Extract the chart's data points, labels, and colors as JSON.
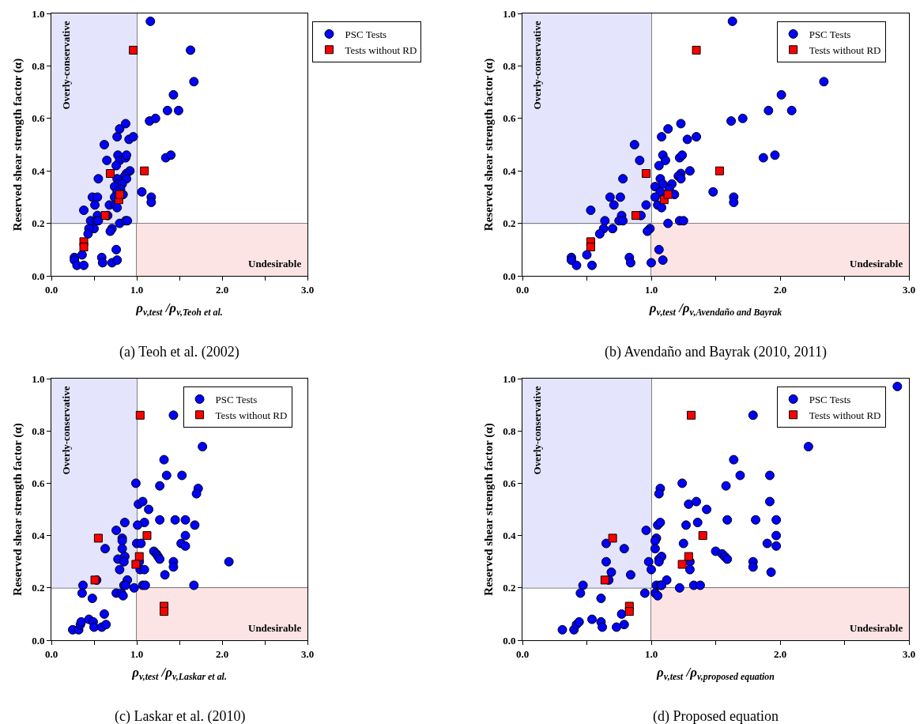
{
  "chart_data": [
    {
      "type": "scatter",
      "title": "(a) Teoh et al. (2002)",
      "xlabel": "ρ$_{v,test}$ /ρ$_{v,Teoh et al.}$",
      "ylabel": "Reserved shear strength factor (α)",
      "legend": "top right",
      "xlim": [
        0,
        3
      ],
      "ylim": [
        0,
        1
      ],
      "xticks": [
        {
          "value": 0,
          "label": "0.0"
        },
        {
          "value": 0.5,
          "label": null
        },
        {
          "value": 1,
          "label": "1.0"
        },
        {
          "value": 1.5,
          "label": null
        },
        {
          "value": 2,
          "label": "2.0"
        },
        {
          "value": 2.5,
          "label": null
        },
        {
          "value": 3,
          "label": "3.0"
        }
      ],
      "yticks": [
        {
          "value": 0,
          "label": "0.0"
        },
        {
          "value": 0.2,
          "label": "0.2"
        },
        {
          "value": 0.4,
          "label": "0.4"
        },
        {
          "value": 0.6,
          "label": "0.6"
        },
        {
          "value": 0.8,
          "label": "0.8"
        },
        {
          "value": 1,
          "label": "1.0"
        }
      ],
      "ref_lines": [
        {
          "axis": "x",
          "value": 1,
          "color": "#000000"
        },
        {
          "axis": "y",
          "value": 0.2,
          "color": "#000000"
        }
      ],
      "bands": [
        {
          "axis": "x",
          "from": 0,
          "to": 1,
          "label": "Overly-conservative",
          "color": "#e4e4fc"
        },
        {
          "axis": "y",
          "from": 0,
          "to": 0.2,
          "label": "Undesirable",
          "color": "#fde4e4"
        }
      ],
      "series": [
        {
          "name": "PSC Tests",
          "color": "#0000ff",
          "marker": "circle",
          "x": [
            1.16,
            1.63,
            1.67,
            1.43,
            1.36,
            1.49,
            1.15,
            1.22,
            0.87,
            0.8,
            0.77,
            0.91,
            0.96,
            0.62,
            0.78,
            0.8,
            0.87,
            0.88,
            0.65,
            0.76,
            0.92,
            0.88,
            0.86,
            0.88,
            0.55,
            0.77,
            0.78,
            0.83,
            0.74,
            0.81,
            0.77,
            0.74,
            0.84,
            0.48,
            0.54,
            0.51,
            0.68,
            0.75,
            0.77,
            0.38,
            0.54,
            0.66,
            0.46,
            0.53,
            0.55,
            0.8,
            0.87,
            0.89,
            0.5,
            0.44,
            0.71,
            0.69,
            0.43,
            0.76,
            0.36,
            0.27,
            0.27,
            0.3,
            0.38,
            0.59,
            0.6,
            0.71,
            0.77,
            1.06,
            1.17,
            1.17,
            1.34,
            1.4
          ],
          "values": [
            0.97,
            0.86,
            0.74,
            0.69,
            0.63,
            0.63,
            0.59,
            0.6,
            0.58,
            0.56,
            0.53,
            0.52,
            0.53,
            0.5,
            0.46,
            0.44,
            0.45,
            0.46,
            0.44,
            0.42,
            0.4,
            0.39,
            0.38,
            0.37,
            0.37,
            0.37,
            0.35,
            0.35,
            0.34,
            0.33,
            0.32,
            0.3,
            0.31,
            0.3,
            0.3,
            0.27,
            0.27,
            0.27,
            0.26,
            0.25,
            0.23,
            0.23,
            0.21,
            0.21,
            0.21,
            0.2,
            0.21,
            0.21,
            0.18,
            0.18,
            0.18,
            0.17,
            0.16,
            0.1,
            0.08,
            0.07,
            0.06,
            0.04,
            0.04,
            0.07,
            0.05,
            0.05,
            0.06,
            0.32,
            0.3,
            0.28,
            0.45,
            0.46
          ]
        },
        {
          "name": "Tests without RD",
          "color": "#ff0000",
          "marker": "square",
          "x": [
            0.96,
            1.09,
            0.69,
            0.79,
            0.8,
            0.63,
            0.38,
            0.38
          ],
          "values": [
            0.86,
            0.4,
            0.39,
            0.29,
            0.31,
            0.23,
            0.13,
            0.11
          ]
        }
      ]
    },
    {
      "type": "scatter",
      "title": "(b) Avendaño and Bayrak (2010, 2011)",
      "xlabel": "ρ$_{v,test}$ /ρ$_{v,Avendaño and Bayrak}$",
      "ylabel": "Reserved shear strength factor (α)",
      "legend": "top right",
      "xlim": [
        0,
        3
      ],
      "ylim": [
        0,
        1
      ],
      "xticks": [
        {
          "value": 0,
          "label": "0.0"
        },
        {
          "value": 0.5,
          "label": null
        },
        {
          "value": 1,
          "label": "1.0"
        },
        {
          "value": 1.5,
          "label": null
        },
        {
          "value": 2,
          "label": "2.0"
        },
        {
          "value": 2.5,
          "label": null
        },
        {
          "value": 3,
          "label": "3.0"
        }
      ],
      "yticks": [
        {
          "value": 0,
          "label": "0.0"
        },
        {
          "value": 0.2,
          "label": "0.2"
        },
        {
          "value": 0.4,
          "label": "0.4"
        },
        {
          "value": 0.6,
          "label": "0.6"
        },
        {
          "value": 0.8,
          "label": "0.8"
        },
        {
          "value": 1,
          "label": "1.0"
        }
      ],
      "ref_lines": [
        {
          "axis": "x",
          "value": 1,
          "color": "#000000"
        },
        {
          "axis": "y",
          "value": 0.2,
          "color": "#000000"
        }
      ],
      "bands": [
        {
          "axis": "x",
          "from": 0,
          "to": 1,
          "label": "Overly-conservative",
          "color": "#e4e4fc"
        },
        {
          "axis": "y",
          "from": 0,
          "to": 0.2,
          "label": "Undesirable",
          "color": "#fde4e4"
        }
      ],
      "series": [
        {
          "name": "PSC Tests",
          "color": "#0000ff",
          "marker": "circle",
          "x": [
            1.63,
            2.34,
            2.01,
            1.91,
            2.09,
            1.62,
            1.71,
            1.23,
            1.13,
            1.08,
            1.28,
            1.35,
            0.87,
            1.09,
            1.11,
            1.22,
            1.24,
            0.91,
            1.06,
            1.3,
            1.23,
            1.21,
            1.23,
            0.78,
            1.07,
            1.09,
            1.16,
            1.03,
            1.14,
            1.07,
            1.03,
            1.18,
            0.68,
            0.76,
            0.71,
            0.96,
            1.05,
            1.08,
            0.53,
            0.77,
            0.92,
            0.64,
            0.75,
            0.78,
            1.13,
            1.22,
            1.25,
            0.63,
            0.7,
            0.99,
            0.97,
            0.6,
            1.06,
            0.5,
            0.38,
            0.38,
            0.42,
            0.54,
            0.83,
            0.84,
            1.0,
            1.09,
            1.48,
            1.64,
            1.64,
            1.87,
            1.96
          ],
          "values": [
            0.97,
            0.74,
            0.69,
            0.63,
            0.63,
            0.59,
            0.6,
            0.58,
            0.56,
            0.53,
            0.52,
            0.53,
            0.5,
            0.46,
            0.44,
            0.45,
            0.46,
            0.44,
            0.42,
            0.4,
            0.39,
            0.38,
            0.37,
            0.37,
            0.37,
            0.35,
            0.35,
            0.34,
            0.33,
            0.32,
            0.3,
            0.31,
            0.3,
            0.3,
            0.27,
            0.27,
            0.27,
            0.26,
            0.25,
            0.23,
            0.23,
            0.21,
            0.21,
            0.21,
            0.2,
            0.21,
            0.21,
            0.18,
            0.18,
            0.18,
            0.17,
            0.16,
            0.1,
            0.08,
            0.07,
            0.06,
            0.04,
            0.04,
            0.07,
            0.05,
            0.05,
            0.06,
            0.32,
            0.3,
            0.28,
            0.45,
            0.46
          ]
        },
        {
          "name": "Tests without RD",
          "color": "#ff0000",
          "marker": "square",
          "x": [
            1.35,
            1.53,
            0.96,
            1.1,
            1.13,
            0.88,
            0.53,
            0.53
          ],
          "values": [
            0.86,
            0.4,
            0.39,
            0.29,
            0.31,
            0.23,
            0.13,
            0.11
          ]
        }
      ]
    },
    {
      "type": "scatter",
      "title": "(c) Laskar et al. (2010)",
      "xlabel": "ρ$_{v,test}$ /ρ$_{v,Laskar et al.}$",
      "ylabel": "Reserved shear strength factor (α)",
      "legend": "top right",
      "xlim": [
        0,
        3
      ],
      "ylim": [
        0,
        1
      ],
      "xticks": [
        {
          "value": 0,
          "label": "0.0"
        },
        {
          "value": 0.5,
          "label": null
        },
        {
          "value": 1,
          "label": "1.0"
        },
        {
          "value": 1.5,
          "label": null
        },
        {
          "value": 2,
          "label": "2.0"
        },
        {
          "value": 2.5,
          "label": null
        },
        {
          "value": 3,
          "label": "3.0"
        }
      ],
      "yticks": [
        {
          "value": 0,
          "label": "0.0"
        },
        {
          "value": 0.2,
          "label": "0.2"
        },
        {
          "value": 0.4,
          "label": "0.4"
        },
        {
          "value": 0.6,
          "label": "0.6"
        },
        {
          "value": 0.8,
          "label": "0.8"
        },
        {
          "value": 1,
          "label": "1.0"
        }
      ],
      "ref_lines": [
        {
          "axis": "x",
          "value": 1,
          "color": "#000000"
        },
        {
          "axis": "y",
          "value": 0.2,
          "color": "#000000"
        }
      ],
      "bands": [
        {
          "axis": "x",
          "from": 0,
          "to": 1,
          "label": "Overly-conservative",
          "color": "#e4e4fc"
        },
        {
          "axis": "y",
          "from": 0,
          "to": 0.2,
          "label": "Undesirable",
          "color": "#fde4e4"
        }
      ],
      "series": [
        {
          "name": "PSC Tests",
          "color": "#0000ff",
          "marker": "circle",
          "x": [
            1.43,
            1.77,
            1.32,
            1.35,
            1.53,
            1.27,
            1.72,
            1.7,
            0.99,
            1.02,
            1.07,
            1.14,
            0.86,
            1.09,
            1.27,
            1.45,
            1.57,
            1.68,
            1.01,
            0.76,
            0.83,
            0.83,
            1.57,
            1.0,
            1.05,
            1.52,
            1.57,
            0.63,
            0.83,
            1.2,
            1.23,
            1.25,
            1.27,
            0.78,
            0.86,
            0.85,
            1.43,
            1.43,
            1.03,
            1.04,
            1.09,
            0.8,
            1.33,
            0.53,
            0.89,
            0.37,
            0.85,
            0.87,
            1.07,
            1.1,
            1.67,
            0.97,
            0.36,
            0.48,
            0.76,
            0.82,
            0.84,
            0.62,
            0.25,
            0.32,
            0.34,
            0.35,
            0.44,
            0.49,
            0.5,
            0.59,
            0.64,
            2.08
          ],
          "values": [
            0.86,
            0.74,
            0.69,
            0.63,
            0.63,
            0.59,
            0.58,
            0.56,
            0.6,
            0.52,
            0.53,
            0.5,
            0.45,
            0.45,
            0.46,
            0.46,
            0.46,
            0.44,
            0.44,
            0.42,
            0.39,
            0.38,
            0.4,
            0.37,
            0.37,
            0.37,
            0.36,
            0.35,
            0.35,
            0.34,
            0.33,
            0.32,
            0.31,
            0.31,
            0.32,
            0.3,
            0.3,
            0.28,
            0.3,
            0.27,
            0.27,
            0.27,
            0.25,
            0.23,
            0.23,
            0.21,
            0.21,
            0.21,
            0.21,
            0.21,
            0.21,
            0.2,
            0.18,
            0.16,
            0.18,
            0.18,
            0.17,
            0.1,
            0.04,
            0.04,
            0.06,
            0.07,
            0.08,
            0.07,
            0.05,
            0.05,
            0.06,
            0.3
          ]
        },
        {
          "name": "Tests without RD",
          "color": "#ff0000",
          "marker": "square",
          "x": [
            1.04,
            1.12,
            0.55,
            1.03,
            0.99,
            0.51,
            1.32,
            1.32
          ],
          "values": [
            0.86,
            0.4,
            0.39,
            0.32,
            0.29,
            0.23,
            0.13,
            0.11
          ]
        }
      ]
    },
    {
      "type": "scatter",
      "title": "(d) Proposed equation",
      "xlabel": "ρ$_{v,test}$ /ρ$_{v,proposed equation}$",
      "ylabel": "Reserved shear strength factor (α)",
      "legend": "top right",
      "xlim": [
        0,
        3
      ],
      "ylim": [
        0,
        1
      ],
      "xticks": [
        {
          "value": 0,
          "label": "0.0"
        },
        {
          "value": 0.5,
          "label": null
        },
        {
          "value": 1,
          "label": "1.0"
        },
        {
          "value": 1.5,
          "label": null
        },
        {
          "value": 2,
          "label": "2.0"
        },
        {
          "value": 2.5,
          "label": null
        },
        {
          "value": 3,
          "label": "3.0"
        }
      ],
      "yticks": [
        {
          "value": 0,
          "label": "0.0"
        },
        {
          "value": 0.2,
          "label": "0.2"
        },
        {
          "value": 0.4,
          "label": "0.4"
        },
        {
          "value": 0.6,
          "label": "0.6"
        },
        {
          "value": 0.8,
          "label": "0.8"
        },
        {
          "value": 1,
          "label": "1.0"
        }
      ],
      "ref_lines": [
        {
          "axis": "x",
          "value": 1,
          "color": "#000000"
        },
        {
          "axis": "y",
          "value": 0.2,
          "color": "#000000"
        }
      ],
      "bands": [
        {
          "axis": "x",
          "from": 0,
          "to": 1,
          "label": "Overly-conservative",
          "color": "#e4e4fc"
        },
        {
          "axis": "y",
          "from": 0,
          "to": 0.2,
          "label": "Undesirable",
          "color": "#fde4e4"
        }
      ],
      "series": [
        {
          "name": "PSC Tests",
          "color": "#0000ff",
          "marker": "circle",
          "x": [
            2.91,
            1.79,
            2.22,
            1.64,
            1.69,
            1.92,
            1.58,
            1.92,
            1.24,
            1.07,
            1.06,
            1.29,
            1.35,
            1.43,
            1.59,
            1.81,
            1.97,
            1.05,
            1.07,
            1.27,
            1.36,
            0.96,
            1.97,
            1.04,
            1.03,
            1.25,
            1.9,
            1.97,
            0.65,
            0.79,
            1.03,
            1.5,
            1.55,
            1.57,
            1.59,
            1.06,
            1.08,
            1.06,
            0.98,
            0.65,
            1.3,
            1.79,
            1.79,
            0.69,
            1.3,
            1.0,
            0.84,
            1.93,
            0.67,
            1.12,
            0.47,
            1.04,
            1.07,
            1.08,
            1.33,
            1.38,
            1.22,
            0.45,
            0.61,
            0.95,
            1.03,
            1.05,
            0.77,
            0.31,
            0.4,
            0.42,
            0.44,
            0.54,
            0.61,
            0.62,
            0.73,
            0.79
          ],
          "values": [
            0.97,
            0.86,
            0.74,
            0.69,
            0.63,
            0.63,
            0.59,
            0.53,
            0.6,
            0.58,
            0.56,
            0.52,
            0.53,
            0.5,
            0.46,
            0.46,
            0.46,
            0.44,
            0.45,
            0.44,
            0.45,
            0.42,
            0.4,
            0.39,
            0.38,
            0.37,
            0.37,
            0.36,
            0.37,
            0.35,
            0.35,
            0.34,
            0.33,
            0.32,
            0.31,
            0.31,
            0.32,
            0.3,
            0.3,
            0.3,
            0.3,
            0.3,
            0.28,
            0.26,
            0.27,
            0.27,
            0.25,
            0.26,
            0.23,
            0.23,
            0.21,
            0.21,
            0.21,
            0.21,
            0.21,
            0.21,
            0.2,
            0.18,
            0.16,
            0.18,
            0.18,
            0.17,
            0.1,
            0.04,
            0.04,
            0.06,
            0.07,
            0.08,
            0.07,
            0.05,
            0.05,
            0.06
          ]
        },
        {
          "name": "Tests without RD",
          "color": "#ff0000",
          "marker": "square",
          "x": [
            1.31,
            1.4,
            0.7,
            1.29,
            1.24,
            0.64,
            0.83,
            0.83
          ],
          "values": [
            0.86,
            0.4,
            0.39,
            0.32,
            0.29,
            0.23,
            0.13,
            0.11
          ]
        }
      ]
    }
  ]
}
